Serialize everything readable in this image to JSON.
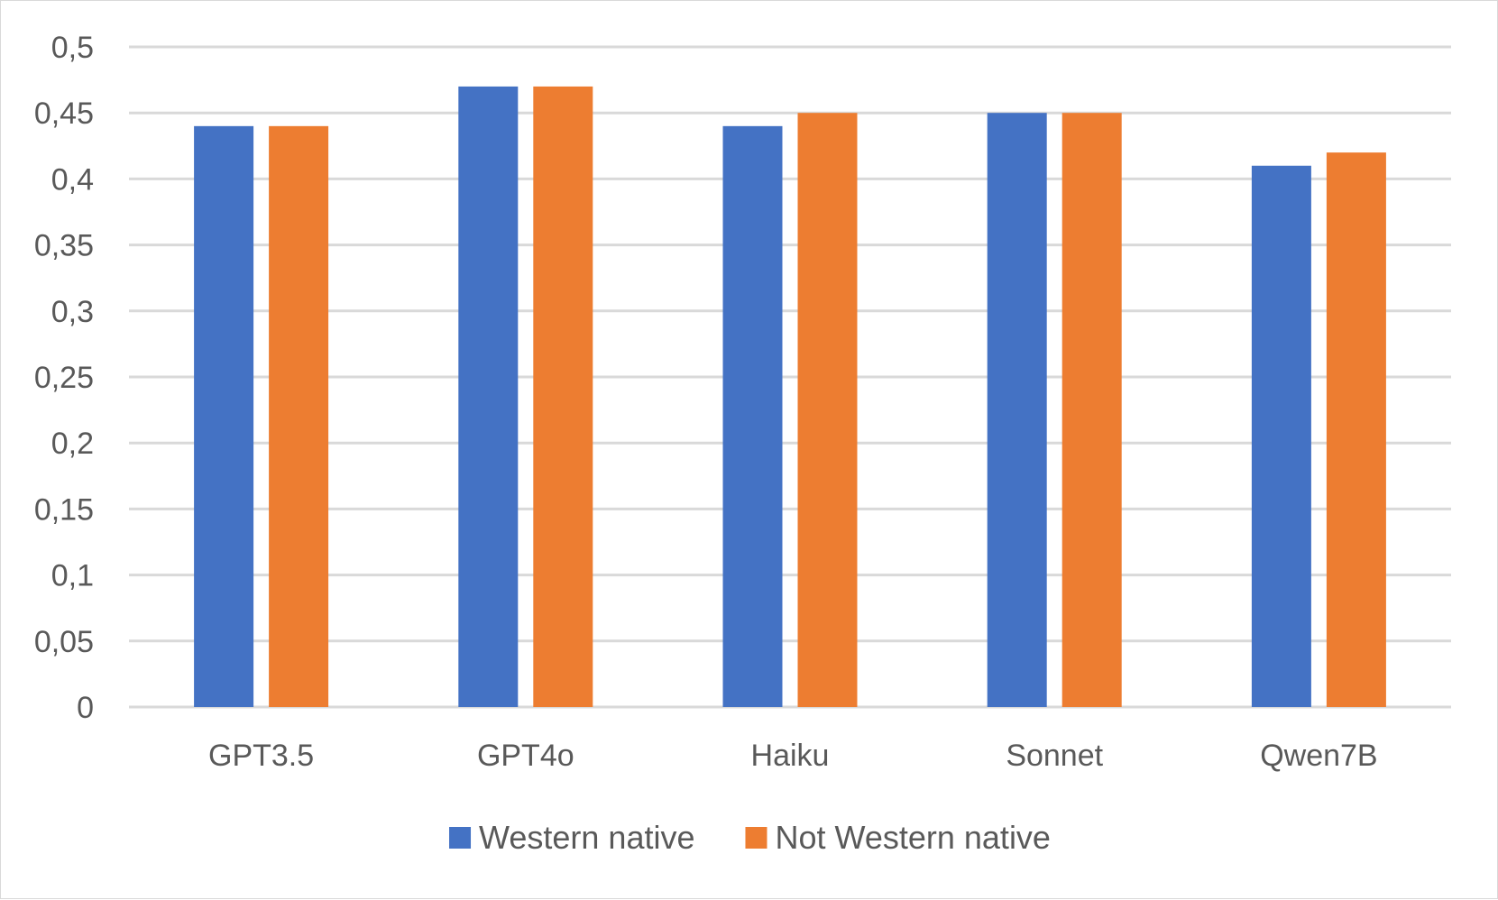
{
  "chart_data": {
    "type": "bar",
    "categories": [
      "GPT3.5",
      "GPT4o",
      "Haiku",
      "Sonnet",
      "Qwen7B"
    ],
    "series": [
      {
        "name": "Western native",
        "values": [
          0.44,
          0.47,
          0.44,
          0.45,
          0.41
        ],
        "color": "#4472c4"
      },
      {
        "name": "Not Western native",
        "values": [
          0.44,
          0.47,
          0.45,
          0.45,
          0.42
        ],
        "color": "#ed7d31"
      }
    ],
    "ylim": [
      0,
      0.5
    ],
    "yticks": [
      0,
      0.05,
      0.1,
      0.15,
      0.2,
      0.25,
      0.3,
      0.35,
      0.4,
      0.45,
      0.5
    ],
    "ytick_labels": [
      "0",
      "0,05",
      "0,1",
      "0,15",
      "0,2",
      "0,25",
      "0,3",
      "0,35",
      "0,4",
      "0,45",
      "0,5"
    ],
    "grid": true,
    "legend_position": "bottom",
    "gridline_color": "#d9d9d9",
    "text_color": "#595959"
  }
}
